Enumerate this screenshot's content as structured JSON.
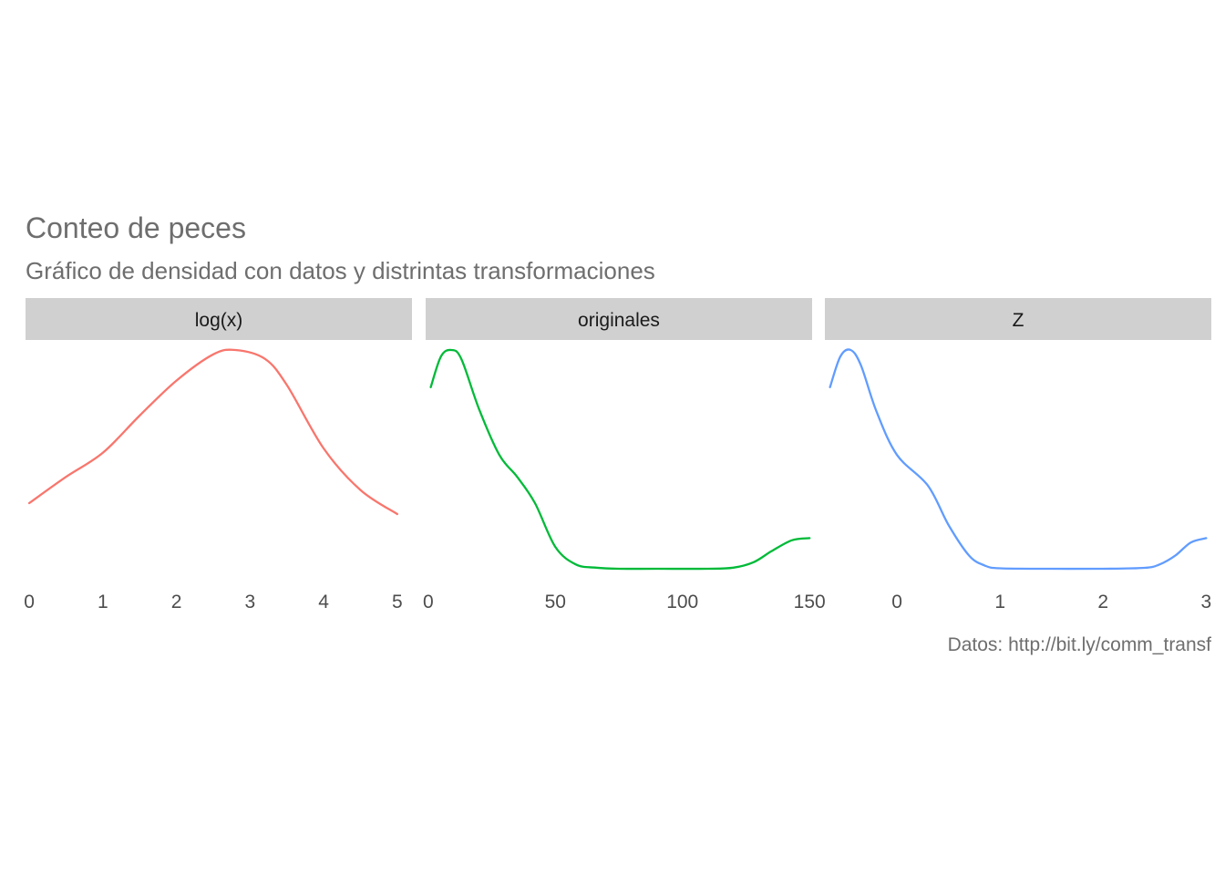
{
  "title": "Conteo de peces",
  "subtitle": "Gráfico de densidad con datos y distrintas transformaciones",
  "caption": "Datos: http://bit.ly/comm_transf",
  "chart_data": {
    "type": "line",
    "facets": [
      {
        "label": "log(x)",
        "color": "#F8766D",
        "xlim": [
          -0.05,
          5.2
        ],
        "xticks": [
          0,
          1,
          2,
          3,
          4,
          5
        ],
        "ylim": [
          0,
          1
        ],
        "x": [
          0,
          0.5,
          1,
          1.5,
          2,
          2.5,
          2.8,
          3.2,
          3.5,
          4,
          4.5,
          5
        ],
        "y": [
          0.3,
          0.42,
          0.53,
          0.7,
          0.86,
          0.98,
          1.0,
          0.96,
          0.84,
          0.55,
          0.36,
          0.25
        ]
      },
      {
        "label": "originales",
        "color": "#00BA38",
        "xlim": [
          -1,
          151
        ],
        "xticks": [
          0,
          50,
          100,
          150
        ],
        "ylim": [
          0,
          1
        ],
        "x": [
          1,
          5,
          9,
          13,
          20,
          28,
          35,
          42,
          50,
          58,
          66,
          75,
          90,
          110,
          120,
          128,
          135,
          143,
          150
        ],
        "y": [
          0.83,
          0.97,
          1.0,
          0.96,
          0.73,
          0.52,
          0.42,
          0.3,
          0.1,
          0.02,
          0.005,
          0.0,
          0.0,
          0.0,
          0.005,
          0.03,
          0.08,
          0.13,
          0.14
        ]
      },
      {
        "label": "Z",
        "color": "#619CFF",
        "xlim": [
          -0.7,
          3.05
        ],
        "xticks": [
          0,
          1,
          2,
          3
        ],
        "ylim": [
          0,
          1
        ],
        "x": [
          -0.65,
          -0.55,
          -0.45,
          -0.35,
          -0.2,
          0,
          0.3,
          0.5,
          0.7,
          0.85,
          1.0,
          1.5,
          2.0,
          2.4,
          2.55,
          2.7,
          2.85,
          3.0
        ],
        "y": [
          0.83,
          0.97,
          1.0,
          0.93,
          0.72,
          0.52,
          0.38,
          0.2,
          0.06,
          0.015,
          0.002,
          0.0,
          0.0,
          0.004,
          0.02,
          0.06,
          0.12,
          0.14
        ]
      }
    ]
  }
}
